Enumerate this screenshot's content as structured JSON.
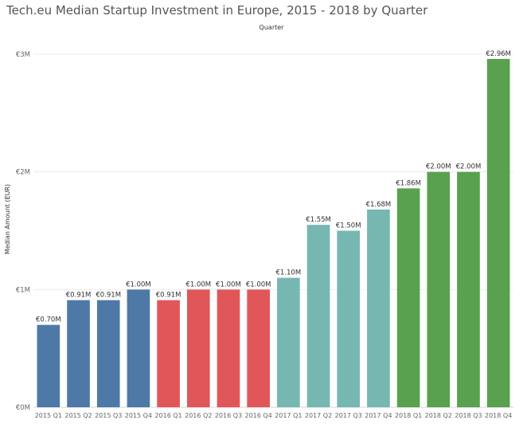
{
  "title": "Tech.eu Median Startup Investment in Europe, 2015 - 2018 by Quarter",
  "chart_data": {
    "type": "bar",
    "title": "Tech.eu Median Startup Investment in Europe, 2015 - 2018 by Quarter",
    "column_header": "Quarter",
    "ylabel": "Median Amount (EUR)",
    "xlabel": "",
    "ylim": [
      0,
      3.0
    ],
    "yticks": [
      {
        "value": 0,
        "label": "€0M"
      },
      {
        "value": 1,
        "label": "€1M"
      },
      {
        "value": 2,
        "label": "€2M"
      },
      {
        "value": 3,
        "label": "€3M"
      }
    ],
    "grid": true,
    "categories": [
      "2015 Q1",
      "2015 Q2",
      "2015 Q3",
      "2015 Q4",
      "2016 Q1",
      "2016 Q2",
      "2016 Q3",
      "2016 Q4",
      "2017 Q1",
      "2017 Q2",
      "2017 Q3",
      "2017 Q4",
      "2018 Q1",
      "2018 Q2",
      "2018 Q3",
      "2018 Q4"
    ],
    "values": [
      0.7,
      0.91,
      0.91,
      1.0,
      0.91,
      1.0,
      1.0,
      1.0,
      1.1,
      1.55,
      1.5,
      1.68,
      1.86,
      2.0,
      2.0,
      2.96
    ],
    "value_labels": [
      "€0.70M",
      "€0.91M",
      "€0.91M",
      "€1.00M",
      "€0.91M",
      "€1.00M",
      "€1.00M",
      "€1.00M",
      "€1.10M",
      "€1.55M",
      "€1.50M",
      "€1.68M",
      "€1.86M",
      "€2.00M",
      "€2.00M",
      "€2.96M"
    ],
    "bar_colors": [
      "#4e79a7",
      "#4e79a7",
      "#4e79a7",
      "#4e79a7",
      "#e15759",
      "#e15759",
      "#e15759",
      "#e15759",
      "#76b7b2",
      "#76b7b2",
      "#76b7b2",
      "#76b7b2",
      "#59a14f",
      "#59a14f",
      "#59a14f",
      "#59a14f"
    ]
  }
}
